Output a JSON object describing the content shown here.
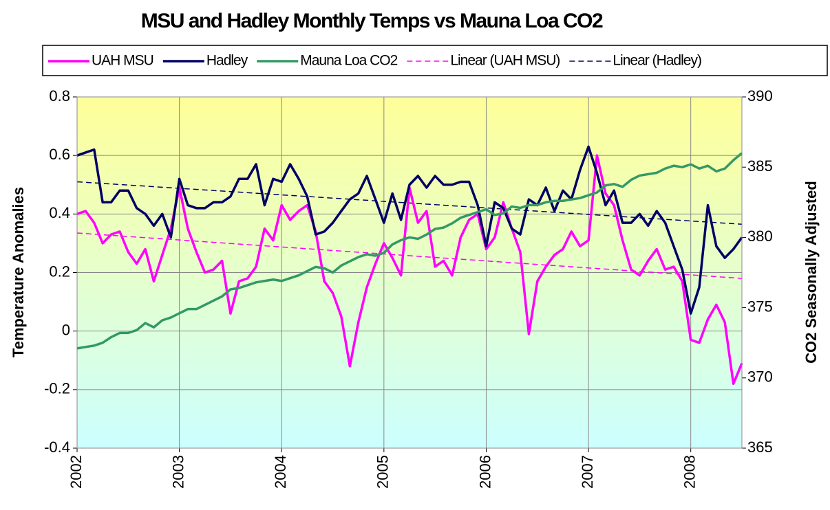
{
  "chart_data": {
    "type": "line",
    "title": "MSU and Hadley Monthly Temps vs Mauna Loa CO2",
    "y_label": "Temperature Anomalies",
    "y2_label": "CO2 Seasonally Adjusted",
    "x": [
      2002,
      2002.083,
      2002.167,
      2002.25,
      2002.333,
      2002.417,
      2002.5,
      2002.583,
      2002.667,
      2002.75,
      2002.833,
      2002.917,
      2003,
      2003.083,
      2003.167,
      2003.25,
      2003.333,
      2003.417,
      2003.5,
      2003.583,
      2003.667,
      2003.75,
      2003.833,
      2003.917,
      2004,
      2004.083,
      2004.167,
      2004.25,
      2004.333,
      2004.417,
      2004.5,
      2004.583,
      2004.667,
      2004.75,
      2004.833,
      2004.917,
      2005,
      2005.083,
      2005.167,
      2005.25,
      2005.333,
      2005.417,
      2005.5,
      2005.583,
      2005.667,
      2005.75,
      2005.833,
      2005.917,
      2006,
      2006.083,
      2006.167,
      2006.25,
      2006.333,
      2006.417,
      2006.5,
      2006.583,
      2006.667,
      2006.75,
      2006.833,
      2006.917,
      2007,
      2007.083,
      2007.167,
      2007.25,
      2007.333,
      2007.417,
      2007.5,
      2007.583,
      2007.667,
      2007.75,
      2007.833,
      2007.917,
      2008,
      2008.083,
      2008.167,
      2008.25,
      2008.333,
      2008.417,
      2008.5
    ],
    "xlim": [
      2002,
      2008.5
    ],
    "xticks": [
      2002,
      2003,
      2004,
      2005,
      2006,
      2007,
      2008
    ],
    "ylim": [
      -0.4,
      0.8
    ],
    "yticks": [
      -0.4,
      -0.2,
      0,
      0.2,
      0.4,
      0.6,
      0.8
    ],
    "y2lim": [
      365,
      390
    ],
    "y2ticks": [
      365,
      370,
      375,
      380,
      385,
      390
    ],
    "grid": true,
    "legend": "top",
    "series": [
      {
        "name": "UAH MSU",
        "color": "#ff00ff",
        "line_style": "solid",
        "values": [
          0.4,
          0.41,
          0.37,
          0.3,
          0.33,
          0.34,
          0.27,
          0.23,
          0.28,
          0.17,
          0.26,
          0.35,
          0.49,
          0.35,
          0.27,
          0.2,
          0.21,
          0.24,
          0.06,
          0.17,
          0.18,
          0.22,
          0.35,
          0.31,
          0.43,
          0.38,
          0.41,
          0.43,
          0.34,
          0.17,
          0.13,
          0.05,
          -0.12,
          0.03,
          0.15,
          0.23,
          0.3,
          0.25,
          0.19,
          0.49,
          0.37,
          0.41,
          0.22,
          0.24,
          0.19,
          0.32,
          0.38,
          0.4,
          0.28,
          0.32,
          0.44,
          0.35,
          0.27,
          -0.01,
          0.17,
          0.22,
          0.26,
          0.28,
          0.34,
          0.29,
          0.31,
          0.6,
          0.47,
          0.43,
          0.31,
          0.21,
          0.19,
          0.24,
          0.28,
          0.21,
          0.22,
          0.17,
          -0.03,
          -0.04,
          0.04,
          0.09,
          0.03,
          -0.18,
          -0.11
        ]
      },
      {
        "name": "Hadley",
        "color": "#000066",
        "line_style": "solid",
        "values": [
          0.6,
          0.61,
          0.62,
          0.44,
          0.44,
          0.48,
          0.48,
          0.42,
          0.4,
          0.36,
          0.4,
          0.32,
          0.52,
          0.43,
          0.42,
          0.42,
          0.44,
          0.44,
          0.46,
          0.52,
          0.52,
          0.57,
          0.43,
          0.52,
          0.51,
          0.57,
          0.52,
          0.46,
          0.33,
          0.34,
          0.37,
          0.41,
          0.45,
          0.47,
          0.53,
          0.45,
          0.37,
          0.47,
          0.38,
          0.5,
          0.53,
          0.49,
          0.53,
          0.5,
          0.5,
          0.51,
          0.51,
          0.43,
          0.29,
          0.44,
          0.42,
          0.35,
          0.33,
          0.45,
          0.43,
          0.49,
          0.41,
          0.48,
          0.45,
          0.55,
          0.63,
          0.54,
          0.43,
          0.48,
          0.37,
          0.37,
          0.4,
          0.36,
          0.41,
          0.37,
          0.29,
          0.21,
          0.06,
          0.15,
          0.43,
          0.29,
          0.25,
          0.28,
          0.32
        ]
      },
      {
        "name": "Mauna Loa CO2",
        "color": "#339966",
        "line_style": "solid",
        "axis": "y2",
        "values": [
          372.1,
          372.2,
          372.3,
          372.5,
          372.9,
          373.2,
          373.2,
          373.4,
          373.9,
          373.6,
          374.1,
          374.3,
          374.6,
          374.9,
          374.9,
          375.2,
          375.5,
          375.8,
          376.3,
          376.4,
          376.6,
          376.8,
          376.9,
          377.0,
          376.9,
          377.1,
          377.3,
          377.6,
          377.9,
          377.8,
          377.5,
          378.0,
          378.3,
          378.6,
          378.8,
          378.7,
          378.9,
          379.5,
          379.8,
          380.0,
          379.9,
          380.2,
          380.6,
          380.7,
          381.0,
          381.4,
          381.6,
          381.8,
          382.0,
          381.6,
          381.7,
          382.2,
          382.1,
          382.3,
          382.3,
          382.5,
          382.6,
          382.6,
          382.7,
          382.8,
          383.0,
          383.2,
          383.7,
          383.8,
          383.6,
          384.1,
          384.4,
          384.5,
          384.6,
          384.9,
          385.1,
          385.0,
          385.2,
          384.9,
          385.1,
          384.7,
          384.9,
          385.5,
          386.0
        ]
      },
      {
        "name": "Linear (UAH MSU)",
        "color": "#ff00ff",
        "line_style": "dashed",
        "x": [
          2002,
          2008.5
        ],
        "values": [
          0.335,
          0.18
        ]
      },
      {
        "name": "Linear (Hadley)",
        "color": "#000066",
        "line_style": "dashed",
        "x": [
          2002,
          2008.5
        ],
        "values": [
          0.51,
          0.365
        ]
      }
    ]
  }
}
